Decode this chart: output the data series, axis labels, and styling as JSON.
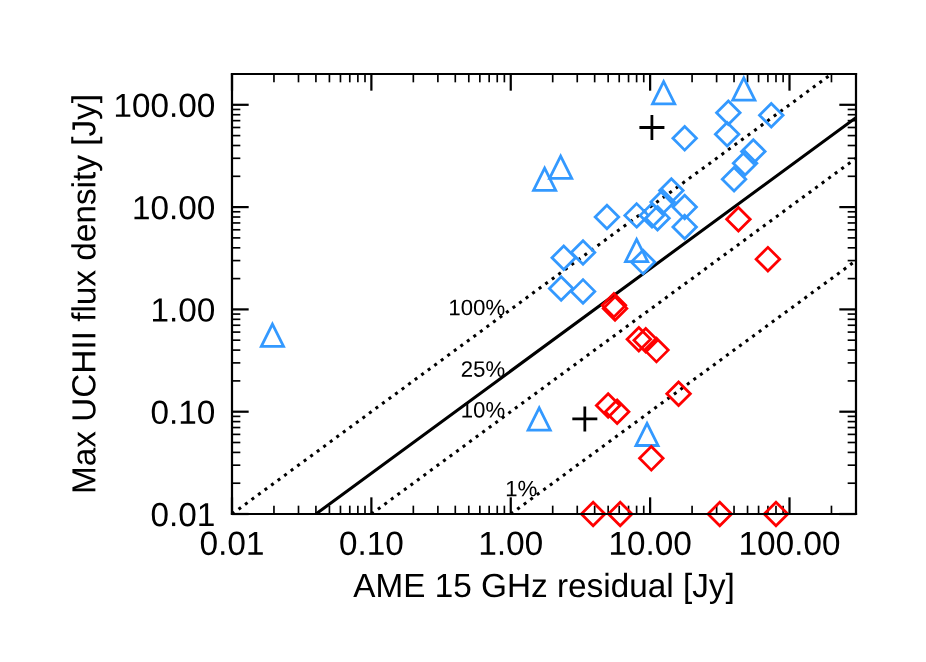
{
  "chart_data": {
    "type": "scatter",
    "xlabel": "AME 15 GHz residual [Jy]",
    "ylabel": "Max UCHII flux density [Jy]",
    "log": "xy",
    "grid": false,
    "legend": false,
    "xlim": [
      0.01,
      300
    ],
    "ylim": [
      0.01,
      200
    ],
    "xticks": [
      {
        "value": 0.01,
        "label": "0.01"
      },
      {
        "value": 0.1,
        "label": "0.10"
      },
      {
        "value": 1,
        "label": "1.00"
      },
      {
        "value": 10,
        "label": "10.00"
      },
      {
        "value": 100,
        "label": "100.00"
      }
    ],
    "yticks": [
      {
        "value": 0.01,
        "label": "0.01"
      },
      {
        "value": 0.1,
        "label": "0.10"
      },
      {
        "value": 1,
        "label": "1.00"
      },
      {
        "value": 10,
        "label": "10.00"
      },
      {
        "value": 100,
        "label": "100.00"
      }
    ],
    "series": [
      {
        "type": "line",
        "name": "100%",
        "line_style": "dotted",
        "color": "#000000",
        "marker": "none",
        "x": [
          0.01,
          200
        ],
        "values": [
          0.01,
          200
        ]
      },
      {
        "type": "line",
        "name": "25%",
        "line_style": "solid",
        "color": "#000000",
        "marker": "none",
        "x": [
          0.04,
          300
        ],
        "values": [
          0.01,
          75
        ]
      },
      {
        "type": "line",
        "name": "10%",
        "line_style": "dotted",
        "color": "#000000",
        "marker": "none",
        "x": [
          0.1,
          300
        ],
        "values": [
          0.01,
          30
        ]
      },
      {
        "type": "line",
        "name": "1%",
        "line_style": "dotted",
        "color": "#000000",
        "marker": "none",
        "x": [
          1,
          300
        ],
        "values": [
          0.01,
          3
        ]
      },
      {
        "marker": "diamond",
        "color": "#3399ff",
        "x": [
          36.4,
          74,
          17.7,
          35.7,
          55,
          48,
          40,
          14.2,
          12.3,
          17.7,
          4.9,
          8.0,
          10.3,
          11.3,
          17.7,
          8.9,
          2.4,
          3.3,
          2.3,
          3.3
        ],
        "values": [
          83.5,
          79,
          47,
          51.6,
          35,
          26.8,
          18.7,
          14.5,
          11.2,
          10,
          8.0,
          8.3,
          8.3,
          7.8,
          6.4,
          2.9,
          3.2,
          3.6,
          1.6,
          1.5
        ]
      },
      {
        "marker": "triangle",
        "color": "#3399ff",
        "x": [
          12.5,
          47,
          1.75,
          2.28,
          8.0,
          1.6,
          9.5,
          0.0195
        ],
        "values": [
          131,
          143,
          18.7,
          24.5,
          3.77,
          0.085,
          0.06,
          0.56
        ]
      },
      {
        "marker": "diamond",
        "color": "#ff0000",
        "x": [
          43,
          70,
          5.5,
          5.6,
          8.3,
          9.3,
          11.1,
          5.0,
          5.8,
          16,
          10.2,
          3.9,
          6.1,
          31.6,
          80
        ],
        "values": [
          7.6,
          3.1,
          1.1,
          1.02,
          0.51,
          0.5,
          0.4,
          0.115,
          0.1,
          0.15,
          0.035,
          0.01,
          0.01,
          0.01,
          0.01
        ]
      },
      {
        "marker": "cross",
        "color": "#000000",
        "x": [
          10.3,
          3.4
        ],
        "values": [
          60,
          0.085
        ]
      }
    ]
  }
}
